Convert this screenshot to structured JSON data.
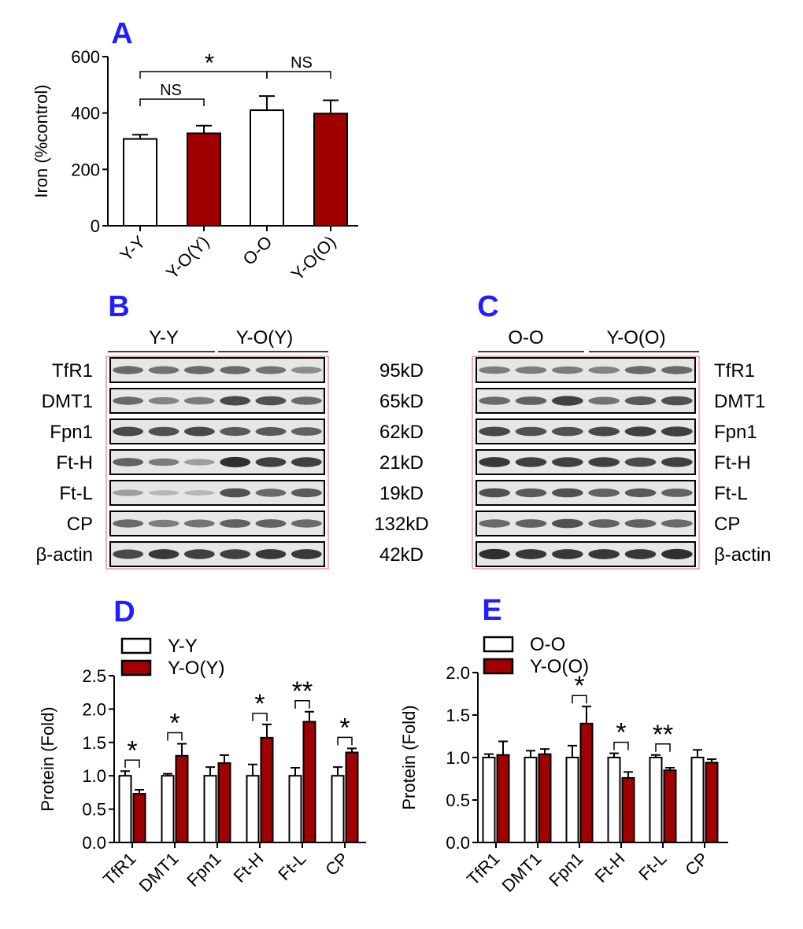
{
  "colors": {
    "white_bar": "#ffffff",
    "red_bar": "#a00000",
    "panel_label": "#1f1fff",
    "blot_border": "#e06060"
  },
  "panel_labels": [
    "A",
    "B",
    "C",
    "D",
    "E"
  ],
  "chart_data": [
    {
      "panel": "A",
      "type": "bar",
      "ylabel": "Iron (%control)",
      "ylim": [
        0,
        600
      ],
      "yticks": [
        "0",
        "200",
        "400",
        "600"
      ],
      "categories": [
        "Y-Y",
        "Y-O(Y)",
        "O-O",
        "Y-O(O)"
      ],
      "values": [
        308,
        328,
        410,
        398
      ],
      "errors": [
        15,
        27,
        50,
        47
      ],
      "bar_colors": [
        "white",
        "red",
        "white",
        "red"
      ],
      "annotations": [
        {
          "text": "NS",
          "from": 0,
          "to": 1
        },
        {
          "text": "*",
          "from": 0,
          "to": 2
        },
        {
          "text": "NS",
          "from": 2,
          "to": 3
        }
      ]
    },
    {
      "panel": "D",
      "type": "bar",
      "ylabel": "Protein (Fold)",
      "ylim": [
        0,
        2.5
      ],
      "yticks": [
        "0.0",
        "0.5",
        "1.0",
        "1.5",
        "2.0",
        "2.5"
      ],
      "categories": [
        "TfR1",
        "DMT1",
        "Fpn1",
        "Ft-H",
        "Ft-L",
        "CP"
      ],
      "legend": [
        "Y-Y",
        "Y-O(Y)"
      ],
      "series": [
        {
          "name": "Y-Y",
          "values": [
            1.0,
            1.0,
            1.0,
            1.0,
            1.0,
            1.0
          ],
          "errors": [
            0.07,
            0.03,
            0.13,
            0.17,
            0.12,
            0.13
          ]
        },
        {
          "name": "Y-O(Y)",
          "values": [
            0.73,
            1.3,
            1.19,
            1.57,
            1.81,
            1.35
          ],
          "errors": [
            0.06,
            0.18,
            0.12,
            0.2,
            0.15,
            0.06
          ]
        }
      ],
      "significance": [
        "*",
        "*",
        "",
        "*",
        "**",
        "*"
      ]
    },
    {
      "panel": "E",
      "type": "bar",
      "ylabel": "Protein (Fold)",
      "ylim": [
        0,
        2.0
      ],
      "yticks": [
        "0.0",
        "0.5",
        "1.0",
        "1.5",
        "2.0"
      ],
      "categories": [
        "TfR1",
        "DMT1",
        "Fpn1",
        "Ft-H",
        "Ft-L",
        "CP"
      ],
      "legend": [
        "O-O",
        "Y-O(O)"
      ],
      "series": [
        {
          "name": "O-O",
          "values": [
            1.0,
            1.0,
            1.0,
            1.0,
            1.0,
            1.0
          ],
          "errors": [
            0.04,
            0.08,
            0.14,
            0.05,
            0.03,
            0.09
          ]
        },
        {
          "name": "Y-O(O)",
          "values": [
            1.03,
            1.04,
            1.4,
            0.76,
            0.85,
            0.94
          ],
          "errors": [
            0.16,
            0.06,
            0.2,
            0.07,
            0.03,
            0.04
          ]
        }
      ],
      "significance": [
        "",
        "",
        "*",
        "*",
        "**",
        ""
      ]
    }
  ],
  "blots": {
    "B": {
      "groups": [
        "Y-Y",
        "Y-O(Y)"
      ],
      "rows": [
        {
          "label": "TfR1",
          "size": "95kD"
        },
        {
          "label": "DMT1",
          "size": "65kD"
        },
        {
          "label": "Fpn1",
          "size": "62kD"
        },
        {
          "label": "Ft-H",
          "size": "21kD"
        },
        {
          "label": "Ft-L",
          "size": "19kD"
        },
        {
          "label": "CP",
          "size": "132kD"
        },
        {
          "label": "β-actin",
          "size": "42kD"
        }
      ],
      "band_levels": [
        [
          0.55,
          0.5,
          0.55,
          0.55,
          0.5,
          0.35
        ],
        [
          0.55,
          0.4,
          0.45,
          0.75,
          0.7,
          0.55
        ],
        [
          0.75,
          0.7,
          0.75,
          0.65,
          0.65,
          0.6
        ],
        [
          0.6,
          0.45,
          0.25,
          0.9,
          0.8,
          0.8
        ],
        [
          0.25,
          0.1,
          0.1,
          0.7,
          0.55,
          0.65
        ],
        [
          0.55,
          0.45,
          0.5,
          0.6,
          0.6,
          0.55
        ],
        [
          0.75,
          0.85,
          0.8,
          0.8,
          0.85,
          0.85
        ]
      ]
    },
    "C": {
      "groups": [
        "O-O",
        "Y-O(O)"
      ],
      "rows": [
        {
          "label": "TfR1"
        },
        {
          "label": "DMT1"
        },
        {
          "label": "Fpn1"
        },
        {
          "label": "Ft-H"
        },
        {
          "label": "Ft-L"
        },
        {
          "label": "CP"
        },
        {
          "label": "β-actin"
        }
      ],
      "band_levels": [
        [
          0.45,
          0.45,
          0.45,
          0.4,
          0.55,
          0.55
        ],
        [
          0.55,
          0.6,
          0.8,
          0.5,
          0.65,
          0.7
        ],
        [
          0.75,
          0.7,
          0.7,
          0.75,
          0.8,
          0.8
        ],
        [
          0.85,
          0.8,
          0.8,
          0.8,
          0.75,
          0.8
        ],
        [
          0.7,
          0.65,
          0.7,
          0.6,
          0.65,
          0.6
        ],
        [
          0.55,
          0.6,
          0.7,
          0.6,
          0.6,
          0.55
        ],
        [
          0.9,
          0.85,
          0.85,
          0.85,
          0.85,
          0.9
        ]
      ]
    }
  }
}
